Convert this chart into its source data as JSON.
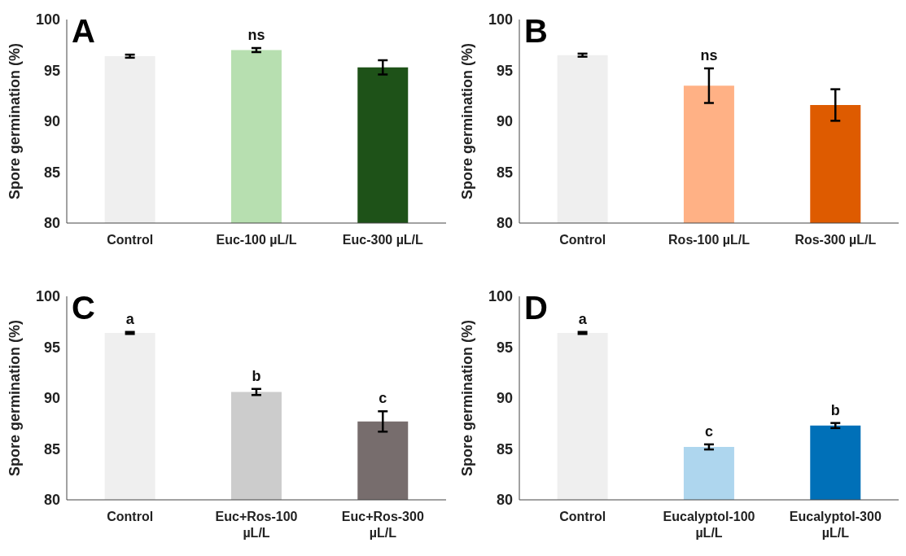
{
  "chart_data": [
    {
      "type": "bar",
      "title": "A",
      "ylabel": "Spore germination (%)",
      "categories": [
        "Control",
        "Euc-100 µL/L",
        "Euc-300 µL/L"
      ],
      "values": [
        96.4,
        97.0,
        95.3
      ],
      "errors": [
        0.15,
        0.2,
        0.7
      ],
      "colors": [
        "#efefef",
        "#b7dfb0",
        "#1e5218"
      ],
      "ylim": [
        80,
        100
      ],
      "yticks": [
        80,
        85,
        90,
        95,
        100
      ],
      "grid": false,
      "annotations": [
        {
          "text": "ns",
          "x": "Euc-100 µL/L",
          "y": 97.0
        }
      ]
    },
    {
      "type": "bar",
      "title": "B",
      "ylabel": "Spore germination (%)",
      "categories": [
        "Control",
        "Ros-100 µL/L",
        "Ros-300 µL/L"
      ],
      "values": [
        96.5,
        93.5,
        91.6
      ],
      "errors": [
        0.15,
        1.7,
        1.55
      ],
      "colors": [
        "#efefef",
        "#ffb185",
        "#de5b00"
      ],
      "ylim": [
        80,
        100
      ],
      "yticks": [
        80,
        85,
        90,
        95,
        100
      ],
      "grid": false,
      "annotations": [
        {
          "text": "ns",
          "x": "Ros-100 µL/L",
          "y": 93.5
        }
      ]
    },
    {
      "type": "bar",
      "title": "C",
      "ylabel": "Spore germination (%)",
      "categories": [
        "Control",
        "Euc+Ros-100 µL/L",
        "Euc+Ros-300 µL/L"
      ],
      "values": [
        96.4,
        90.6,
        87.7
      ],
      "errors": [
        0.1,
        0.3,
        1.0
      ],
      "colors": [
        "#efefef",
        "#cccccc",
        "#776d6d"
      ],
      "ylim": [
        80,
        100
      ],
      "yticks": [
        80,
        85,
        90,
        95,
        100
      ],
      "grid": false,
      "annotations": [
        {
          "text": "a",
          "x": "Control",
          "y": 96.4
        },
        {
          "text": "b",
          "x": "Euc+Ros-100 µL/L",
          "y": 90.6
        },
        {
          "text": "c",
          "x": "Euc+Ros-300 µL/L",
          "y": 87.7
        }
      ]
    },
    {
      "type": "bar",
      "title": "D",
      "ylabel": "Spore germination (%)",
      "categories": [
        "Control",
        "Eucalyptol-100 µL/L",
        "Eucalyptol-300 µL/L"
      ],
      "values": [
        96.4,
        85.2,
        87.3
      ],
      "errors": [
        0.1,
        0.25,
        0.25
      ],
      "colors": [
        "#efefef",
        "#aed6ee",
        "#0070b8"
      ],
      "ylim": [
        80,
        100
      ],
      "yticks": [
        80,
        85,
        90,
        95,
        100
      ],
      "grid": false,
      "annotations": [
        {
          "text": "a",
          "x": "Control",
          "y": 96.4
        },
        {
          "text": "c",
          "x": "Eucalyptol-100 µL/L",
          "y": 85.2
        },
        {
          "text": "b",
          "x": "Eucalyptol-300 µL/L",
          "y": 87.3
        }
      ]
    }
  ]
}
